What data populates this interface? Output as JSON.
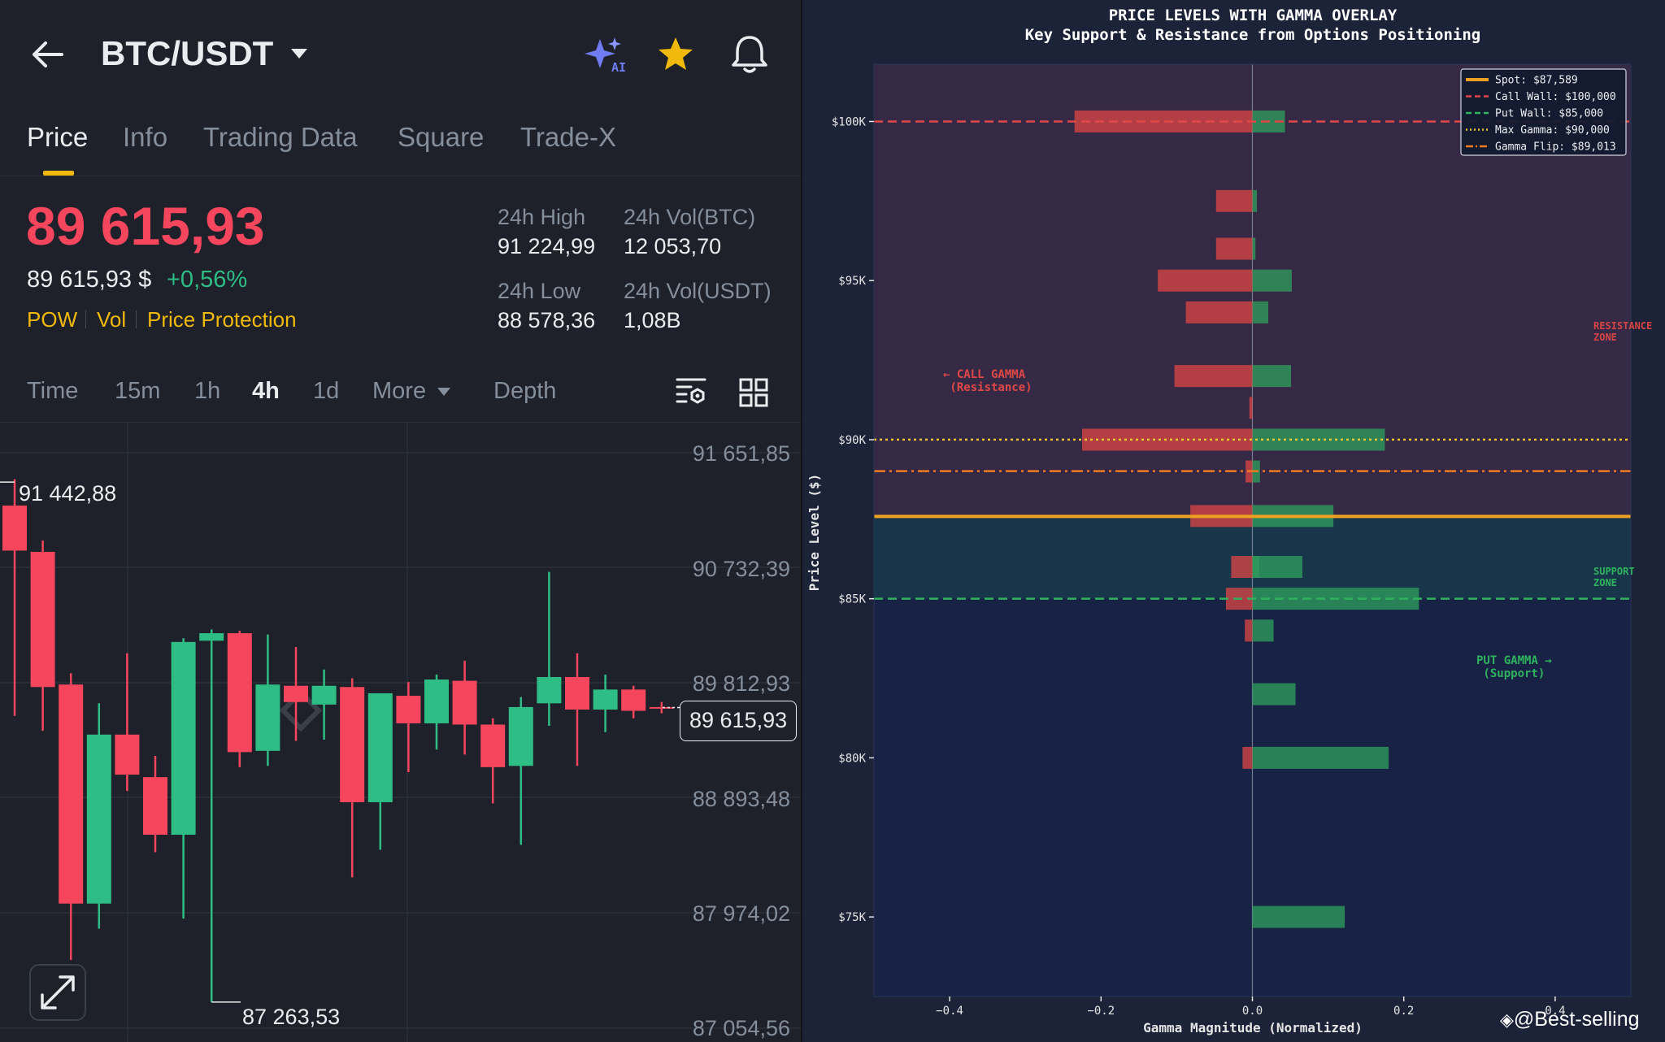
{
  "header": {
    "pair": "BTC/USDT",
    "icons": [
      "back-arrow-icon",
      "ai-sparkle-icon",
      "star-icon",
      "bell-icon"
    ]
  },
  "tabs": [
    "Price",
    "Info",
    "Trading Data",
    "Square",
    "Trade-X"
  ],
  "price": {
    "last": "89 615,93",
    "usd": "89 615,93 $",
    "change": "+0,56%",
    "tags": [
      "POW",
      "Vol",
      "Price Protection"
    ]
  },
  "stats": {
    "high_label": "24h High",
    "high": "91 224,99",
    "volbtc_label": "24h Vol(BTC)",
    "volbtc": "12 053,70",
    "low_label": "24h Low",
    "low": "88 578,36",
    "volusdt_label": "24h Vol(USDT)",
    "volusdt": "1,08B"
  },
  "timeframes": {
    "items": [
      "Time",
      "15m",
      "1h",
      "4h",
      "1d",
      "More"
    ],
    "active": "4h",
    "depth": "Depth"
  },
  "candles": {
    "price_axis": [
      "91 651,85",
      "90 732,39",
      "89 812,93",
      "88 893,48",
      "87 974,02",
      "87 054,56"
    ],
    "current_price": "89 615,93",
    "high_marker": "91 442,88",
    "low_marker": "87 263,53",
    "colors": {
      "up": "#2ebd85",
      "down": "#f6465d"
    },
    "series": [
      {
        "o": 91230,
        "h": 91440,
        "l": 89550,
        "c": 90870
      },
      {
        "o": 90860,
        "h": 90950,
        "l": 89430,
        "c": 89780
      },
      {
        "o": 89800,
        "h": 89890,
        "l": 87600,
        "c": 88050
      },
      {
        "o": 88050,
        "h": 89650,
        "l": 87850,
        "c": 89400
      },
      {
        "o": 89400,
        "h": 90050,
        "l": 88950,
        "c": 89080
      },
      {
        "o": 89060,
        "h": 89230,
        "l": 88460,
        "c": 88600
      },
      {
        "o": 88600,
        "h": 90170,
        "l": 87930,
        "c": 90140
      },
      {
        "o": 90150,
        "h": 90240,
        "l": 87263.53,
        "c": 90210
      },
      {
        "o": 90210,
        "h": 90230,
        "l": 89140,
        "c": 89260
      },
      {
        "o": 89270,
        "h": 90200,
        "l": 89150,
        "c": 89800
      },
      {
        "o": 89790,
        "h": 90100,
        "l": 89350,
        "c": 89660
      },
      {
        "o": 89640,
        "h": 89920,
        "l": 89360,
        "c": 89790
      },
      {
        "o": 89780,
        "h": 89850,
        "l": 88260,
        "c": 88860
      },
      {
        "o": 88860,
        "h": 89710,
        "l": 88480,
        "c": 89730
      },
      {
        "o": 89710,
        "h": 89820,
        "l": 89100,
        "c": 89490
      },
      {
        "o": 89490,
        "h": 89880,
        "l": 89280,
        "c": 89840
      },
      {
        "o": 89830,
        "h": 89990,
        "l": 89240,
        "c": 89480
      },
      {
        "o": 89480,
        "h": 89530,
        "l": 88850,
        "c": 89140
      },
      {
        "o": 89150,
        "h": 89700,
        "l": 88520,
        "c": 89620
      },
      {
        "o": 89650,
        "h": 90700,
        "l": 89470,
        "c": 89860
      },
      {
        "o": 89860,
        "h": 90050,
        "l": 89150,
        "c": 89600
      },
      {
        "o": 89600,
        "h": 89880,
        "l": 89420,
        "c": 89760
      },
      {
        "o": 89760,
        "h": 89790,
        "l": 89530,
        "c": 89590
      },
      {
        "o": 89620,
        "h": 89660,
        "l": 89570,
        "c": 89615.93
      }
    ]
  },
  "chart_data": {
    "type": "bar",
    "orientation": "horizontal",
    "title": "PRICE LEVELS WITH GAMMA OVERLAY",
    "subtitle": "Key Support & Resistance from Options Positioning",
    "xlabel": "Gamma Magnitude (Normalized)",
    "ylabel": "Price Level ($)",
    "xlim": [
      -0.5,
      0.5
    ],
    "ylim": [
      72500,
      101800
    ],
    "xticks": [
      "−0.4",
      "−0.2",
      "0.0",
      "0.2",
      "0.4"
    ],
    "xtick_values": [
      -0.4,
      -0.2,
      0,
      0.2,
      0.4
    ],
    "yticks": [
      "$75K",
      "$80K",
      "$85K",
      "$90K",
      "$95K",
      "$100K"
    ],
    "ytick_values": [
      75000,
      80000,
      85000,
      90000,
      95000,
      100000
    ],
    "series": [
      {
        "color": "#d64545",
        "values": [
          [
            100000,
            -0.235
          ],
          [
            97500,
            -0.048
          ],
          [
            96000,
            -0.048
          ],
          [
            95000,
            -0.125
          ],
          [
            94000,
            -0.088
          ],
          [
            92000,
            -0.103
          ],
          [
            91000,
            -0.004
          ],
          [
            90000,
            -0.225
          ],
          [
            89000,
            -0.009
          ],
          [
            87600,
            -0.082
          ],
          [
            86000,
            -0.028
          ],
          [
            85000,
            -0.035
          ],
          [
            84000,
            -0.01
          ],
          [
            80000,
            -0.013
          ]
        ]
      },
      {
        "color": "#2e9c5c",
        "values": [
          [
            100000,
            0.043
          ],
          [
            97500,
            0.006
          ],
          [
            96000,
            0.004
          ],
          [
            95000,
            0.052
          ],
          [
            94000,
            0.021
          ],
          [
            92000,
            0.051
          ],
          [
            90000,
            0.175
          ],
          [
            89000,
            0.01
          ],
          [
            87600,
            0.107
          ],
          [
            86000,
            0.009
          ],
          [
            86000,
            0.066
          ],
          [
            85000,
            0.22
          ],
          [
            84000,
            0.028
          ],
          [
            82000,
            0.057
          ],
          [
            80000,
            0.18
          ],
          [
            75000,
            0.122
          ]
        ]
      }
    ],
    "zones": {
      "resistance": "RESISTANCE\nZONE",
      "support": "SUPPORT\nZONE",
      "resistance_range": [
        87589,
        101800
      ],
      "support_range": [
        85000,
        87589
      ]
    },
    "annotations": [
      "← CALL GAMMA\n  (Resistance)",
      "PUT GAMMA →\n   (Support)"
    ],
    "reference_lines": [
      {
        "label": "Spot: $87,589",
        "value": 87589,
        "color": "#f0a020",
        "style": "solid"
      },
      {
        "label": "Call Wall: $100,000",
        "value": 100000,
        "color": "#e04848",
        "style": "dashed"
      },
      {
        "label": "Put Wall: $85,000",
        "value": 85000,
        "color": "#2fb35e",
        "style": "dashed"
      },
      {
        "label": "Max Gamma: $90,000",
        "value": 90000,
        "color": "#e8c530",
        "style": "dotted"
      },
      {
        "label": "Gamma Flip: $89,013",
        "value": 89013,
        "color": "#f07a20",
        "style": "dashdot"
      }
    ],
    "legend_position": "top-right",
    "watermark": "@Best-selling"
  }
}
